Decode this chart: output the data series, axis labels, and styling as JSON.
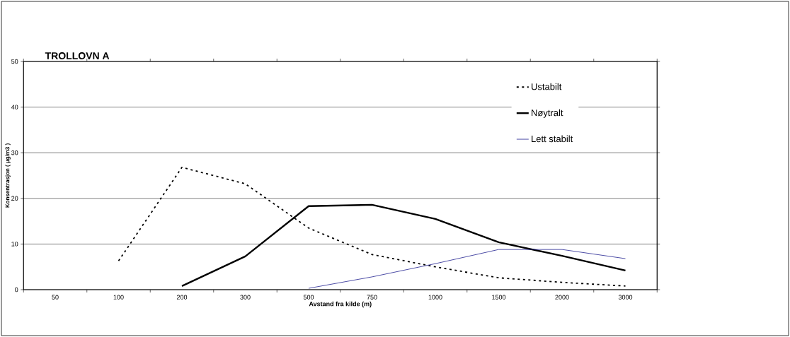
{
  "chart_data": {
    "type": "line",
    "title": "TROLLOVN A",
    "xlabel": "Avstand fra kilde (m)",
    "ylabel": "Konsentrasjon ( µg/m3 )",
    "categories": [
      "50",
      "100",
      "200",
      "300",
      "500",
      "750",
      "1000",
      "1500",
      "2000",
      "3000"
    ],
    "series": [
      {
        "name": "Ustabilt",
        "color": "#000000",
        "line_style": "dashed",
        "values": [
          null,
          6.3,
          26.8,
          23.2,
          13.5,
          7.7,
          5.0,
          2.6,
          1.6,
          0.8
        ]
      },
      {
        "name": "Nøytralt",
        "color": "#000000",
        "line_style": "solid",
        "values": [
          null,
          null,
          0.8,
          7.3,
          18.3,
          18.6,
          15.5,
          10.4,
          7.4,
          4.2
        ]
      },
      {
        "name": "Lett stabilt",
        "color": "#000080",
        "line_style": "solid",
        "values": [
          null,
          null,
          null,
          null,
          0.3,
          2.8,
          5.7,
          8.8,
          8.8,
          6.8
        ]
      }
    ],
    "ylim": [
      0,
      50
    ],
    "yticks": [
      0,
      10,
      20,
      30,
      40,
      50
    ],
    "grid": "y",
    "legend": "top right",
    "marker": "none"
  }
}
